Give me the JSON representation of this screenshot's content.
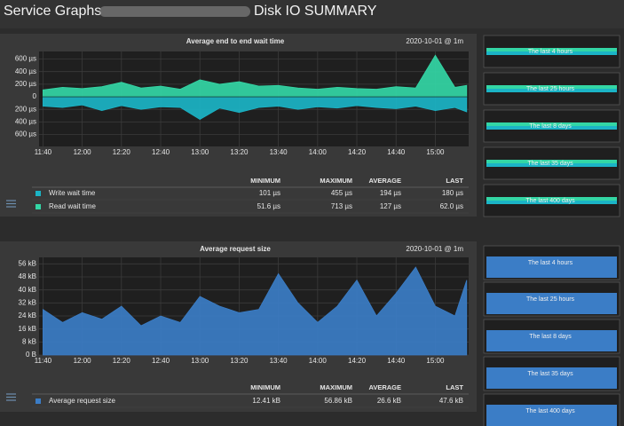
{
  "header": {
    "title": "Service Graphs",
    "service": "Disk IO SUMMARY"
  },
  "graphs": [
    {
      "type": "mirrored-area",
      "title": "Average end to end wait time",
      "timestamp": "2020-10-01 @ 1m",
      "x": [
        "11:40",
        "11:50",
        "12:00",
        "12:10",
        "12:20",
        "12:30",
        "12:40",
        "12:50",
        "13:00",
        "13:10",
        "13:20",
        "13:30",
        "13:40",
        "13:50",
        "14:00",
        "14:10",
        "14:20",
        "14:30",
        "14:40",
        "14:50",
        "15:00",
        "15:10",
        "15:16"
      ],
      "xlim": [
        "11:38",
        "15:17"
      ],
      "xticks": [
        "11:40",
        "12:00",
        "12:20",
        "12:40",
        "13:00",
        "13:20",
        "13:40",
        "14:00",
        "14:20",
        "14:40",
        "15:00"
      ],
      "ylim": [
        -790,
        720
      ],
      "yticks": [
        {
          "value": 600,
          "label": "600 µs"
        },
        {
          "value": 400,
          "label": "400 µs"
        },
        {
          "value": 200,
          "label": "200 µs"
        },
        0,
        {
          "value": -200,
          "label": "200 µs"
        },
        {
          "value": -400,
          "label": "400 µs"
        },
        {
          "value": -600,
          "label": "600 µs"
        }
      ],
      "series": [
        {
          "name": "Write wait time",
          "color": "#1bb4c6",
          "direction": "down",
          "values": [
            150,
            170,
            130,
            220,
            140,
            200,
            160,
            170,
            360,
            180,
            250,
            170,
            150,
            200,
            160,
            180,
            140,
            170,
            190,
            150,
            220,
            170,
            240
          ]
        },
        {
          "name": "Read wait time",
          "color": "#33d6a5",
          "direction": "up",
          "values": [
            110,
            150,
            130,
            160,
            230,
            140,
            170,
            120,
            270,
            200,
            240,
            170,
            180,
            140,
            120,
            150,
            130,
            120,
            160,
            140,
            660,
            150,
            180
          ]
        }
      ],
      "table": {
        "columns": [
          "MINIMUM",
          "MAXIMUM",
          "AVERAGE",
          "LAST"
        ],
        "rows": [
          [
            "101 µs",
            "455 µs",
            "194 µs",
            "180 µs"
          ],
          [
            "51.6 µs",
            "713 µs",
            "127 µs",
            "62.0 µs"
          ]
        ]
      }
    },
    {
      "type": "area",
      "title": "Average request size",
      "timestamp": "2020-10-01 @ 1m",
      "x": [
        "11:40",
        "11:50",
        "12:00",
        "12:10",
        "12:20",
        "12:30",
        "12:40",
        "12:50",
        "13:00",
        "13:10",
        "13:20",
        "13:30",
        "13:40",
        "13:50",
        "14:00",
        "14:10",
        "14:20",
        "14:30",
        "14:40",
        "14:50",
        "15:00",
        "15:10",
        "15:16"
      ],
      "xlim": [
        "11:38",
        "15:17"
      ],
      "xticks": [
        "11:40",
        "12:00",
        "12:20",
        "12:40",
        "13:00",
        "13:20",
        "13:40",
        "14:00",
        "14:20",
        "14:40",
        "15:00"
      ],
      "ylim": [
        0,
        60
      ],
      "yticks": [
        {
          "value": 0,
          "label": "0 B"
        },
        {
          "value": 8,
          "label": "8 kB"
        },
        {
          "value": 16,
          "label": "16 kB"
        },
        {
          "value": 24,
          "label": "24 kB"
        },
        {
          "value": 32,
          "label": "32 kB"
        },
        {
          "value": 40,
          "label": "40 kB"
        },
        {
          "value": 48,
          "label": "48 kB"
        },
        {
          "value": 56,
          "label": "56 kB"
        }
      ],
      "series": [
        {
          "name": "Average request size",
          "color": "#3b7dc6",
          "direction": "up",
          "values": [
            28,
            20,
            26,
            22,
            30,
            18,
            24,
            20,
            36,
            30,
            26,
            28,
            50,
            32,
            20,
            30,
            46,
            24,
            38,
            54,
            30,
            24,
            46
          ]
        }
      ],
      "table": {
        "columns": [
          "MINIMUM",
          "MAXIMUM",
          "AVERAGE",
          "LAST"
        ],
        "rows": [
          [
            "12.41 kB",
            "56.86 kB",
            "26.6 kB",
            "47.6 kB"
          ]
        ]
      }
    }
  ],
  "timeranges": [
    [
      "The last 4 hours",
      "The last 25 hours",
      "The last 8 days",
      "The last 35 days",
      "The last 400 days"
    ],
    [
      "The last 4 hours",
      "The last 25 hours",
      "The last 8 days",
      "The last 35 days",
      "The last 400 days"
    ]
  ]
}
